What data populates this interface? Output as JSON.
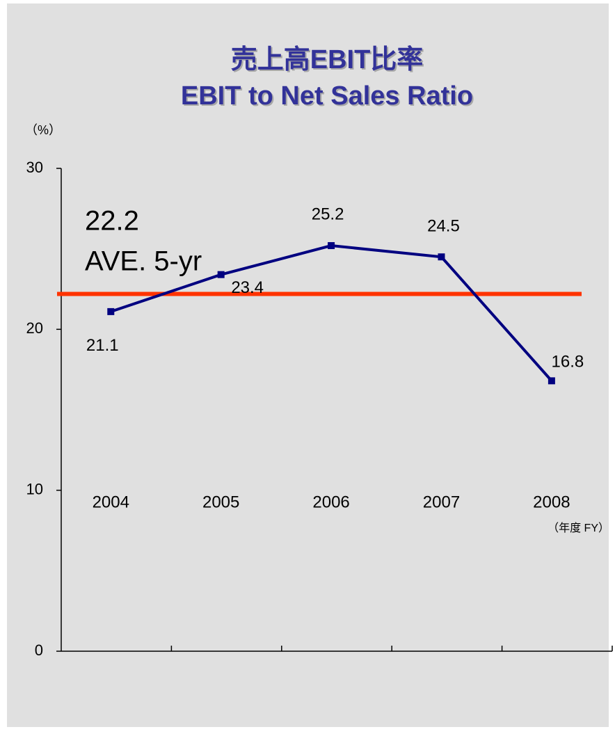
{
  "chart_data": {
    "type": "line",
    "title": "売上高EBIT比率",
    "subtitle": "EBIT to Net Sales Ratio",
    "y_label": "（%）",
    "x_label": "（年度 FY）",
    "categories": [
      "2004",
      "2005",
      "2006",
      "2007",
      "2008"
    ],
    "series": [
      {
        "name": "EBIT to Net Sales Ratio",
        "color": "#000080",
        "values": [
          21.1,
          23.4,
          25.2,
          24.5,
          16.8
        ]
      }
    ],
    "average": {
      "value": 22.2,
      "label": "AVE. 5-yr",
      "color": "#ff3300"
    },
    "ylim": [
      0,
      30
    ],
    "yticks": [
      0,
      10,
      20,
      30
    ],
    "grid": false
  }
}
